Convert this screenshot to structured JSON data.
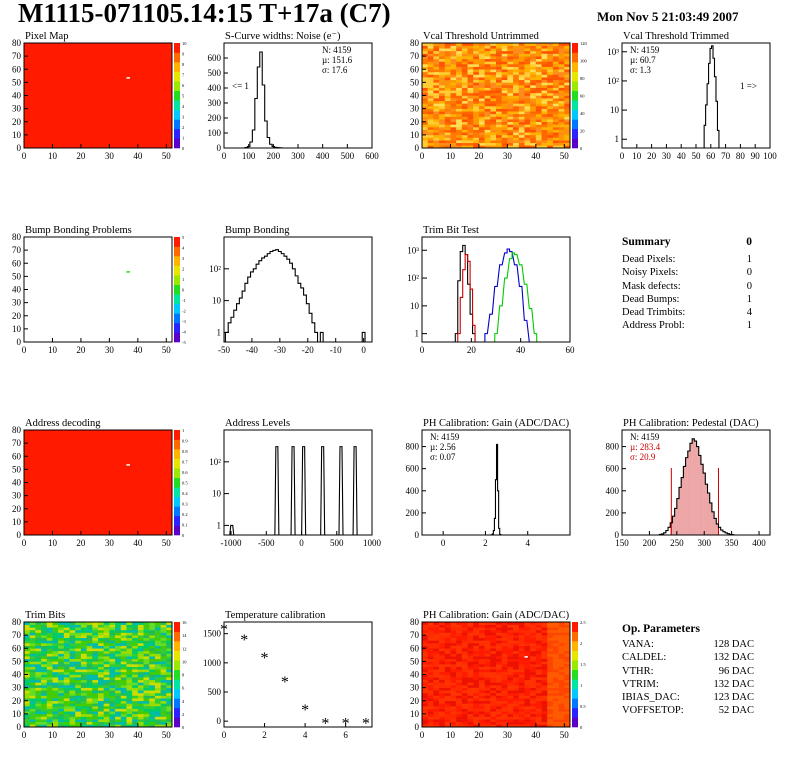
{
  "header": {
    "title": "M1115-071105.14:15 T+17a (C7)",
    "timestamp": "Mon Nov  5 21:03:49 2007"
  },
  "colors": {
    "histogram_line": "#000000",
    "trim_red": "#cc0000",
    "trim_blue": "#0000cc",
    "trim_green": "#00cc00",
    "pedestal_fill": "#cc0000",
    "map_red": "#ff1a00"
  },
  "chart_data": [
    {
      "id": "pixel-map",
      "type": "heatmap",
      "title": "Pixel Map",
      "xlim": [
        0,
        52
      ],
      "ylim": [
        0,
        80
      ],
      "x_ticks": [
        0,
        10,
        20,
        30,
        40,
        50
      ],
      "y_ticks": [
        0,
        10,
        20,
        30,
        40,
        50,
        60,
        70,
        80
      ],
      "z_ticks": [
        0,
        1,
        2,
        3,
        4,
        5,
        6,
        7,
        8,
        9,
        10
      ],
      "fill": "uniform",
      "special_pixels": [
        [
          36,
          53
        ]
      ]
    },
    {
      "id": "scurve-noise",
      "type": "histogram",
      "title": "S-Curve widths: Noise (e⁻)",
      "xlim": [
        0,
        600
      ],
      "ylim": [
        0,
        700
      ],
      "x_ticks": [
        0,
        100,
        200,
        300,
        400,
        500,
        600
      ],
      "y_ticks": [
        0,
        100,
        200,
        300,
        400,
        500,
        600
      ],
      "stats": [
        "N: 4159",
        "µ: 151.6",
        "σ: 17.6"
      ],
      "underflow_label": "<= 1",
      "bin_width": 10,
      "x": [
        90,
        100,
        110,
        120,
        130,
        140,
        150,
        160,
        170,
        180,
        190,
        200,
        210,
        220,
        230
      ],
      "values": [
        3,
        10,
        40,
        120,
        330,
        540,
        640,
        420,
        180,
        70,
        25,
        10,
        4,
        2,
        1
      ]
    },
    {
      "id": "vcal-untrimmed",
      "type": "heatmap",
      "title": "Vcal Threshold Untrimmed",
      "xlim": [
        0,
        52
      ],
      "ylim": [
        0,
        80
      ],
      "x_ticks": [
        0,
        10,
        20,
        30,
        40,
        50
      ],
      "y_ticks": [
        0,
        10,
        20,
        30,
        40,
        50,
        60,
        70,
        80
      ],
      "z_ticks": [
        0,
        20,
        40,
        60,
        80,
        100,
        120
      ],
      "fill": "noisy orange"
    },
    {
      "id": "vcal-trimmed",
      "type": "histogram",
      "title": "Vcal Threshold Trimmed",
      "log_y": true,
      "xlim": [
        0,
        100
      ],
      "ylim": [
        0.5,
        2000
      ],
      "x_ticks": [
        0,
        10,
        20,
        30,
        40,
        50,
        60,
        70,
        80,
        90,
        100
      ],
      "y_ticks": [
        "1",
        "10",
        "10²",
        "10³"
      ],
      "stats": [
        "N: 4159",
        "µ: 60.7",
        "σ: 1.3"
      ],
      "overflow_label": "1 =>",
      "bin_width": 1,
      "x": [
        56,
        57,
        58,
        59,
        60,
        61,
        62,
        63,
        64,
        65
      ],
      "values": [
        3,
        15,
        80,
        400,
        1300,
        1600,
        600,
        140,
        20,
        2
      ]
    },
    {
      "id": "bump-bonding-problems",
      "type": "heatmap",
      "title": "Bump Bonding Problems",
      "xlim": [
        0,
        52
      ],
      "ylim": [
        0,
        80
      ],
      "x_ticks": [
        0,
        10,
        20,
        30,
        40,
        50
      ],
      "y_ticks": [
        0,
        10,
        20,
        30,
        40,
        50,
        60,
        70,
        80
      ],
      "z_ticks": [
        -5,
        -4,
        -3,
        -2,
        -1,
        0,
        1,
        2,
        3,
        4,
        5
      ],
      "fill": "empty",
      "special_pixels": [
        [
          36,
          53
        ]
      ]
    },
    {
      "id": "bump-bonding",
      "type": "histogram",
      "title": "Bump Bonding",
      "log_y": true,
      "xlim": [
        -50,
        3
      ],
      "ylim": [
        0.5,
        1000
      ],
      "x_ticks": [
        -50,
        -40,
        -30,
        -20,
        -10,
        0
      ],
      "y_ticks": [
        "1",
        "10",
        "10²"
      ],
      "bin_width": 1,
      "x": [
        -49,
        -48,
        -47,
        -46,
        -45,
        -44,
        -43,
        -42,
        -41,
        -40,
        -39,
        -38,
        -37,
        -36,
        -35,
        -34,
        -33,
        -32,
        -31,
        -30,
        -29,
        -28,
        -27,
        -26,
        -25,
        -24,
        -23,
        -22,
        -21,
        -20,
        -19,
        -18,
        -17,
        -16,
        -15,
        -14,
        -13,
        -12,
        -11,
        -10,
        -9,
        -8,
        -7,
        -6,
        -5,
        -4,
        -3,
        -2,
        -1,
        0,
        1
      ],
      "values": [
        1,
        2,
        3,
        5,
        8,
        12,
        20,
        35,
        55,
        80,
        100,
        140,
        180,
        220,
        250,
        300,
        350,
        380,
        400,
        350,
        300,
        250,
        200,
        150,
        100,
        60,
        35,
        25,
        15,
        8,
        4,
        2,
        1,
        0,
        1,
        0,
        0,
        0,
        0,
        0,
        0,
        0,
        0,
        0,
        0,
        0,
        0,
        0,
        0,
        1,
        0
      ]
    },
    {
      "id": "trim-bit-test",
      "type": "histogram",
      "title": "Trim Bit Test",
      "log_y": true,
      "xlim": [
        0,
        60
      ],
      "ylim": [
        0.5,
        3000
      ],
      "x_ticks": [
        0,
        20,
        40,
        60
      ],
      "y_ticks": [
        "1",
        "10",
        "10²",
        "10³"
      ],
      "bin_width": 1,
      "series": [
        {
          "color": "#000000",
          "x": [
            14,
            15,
            16,
            17,
            18,
            19,
            20,
            21,
            22
          ],
          "values": [
            1,
            80,
            900,
            1500,
            700,
            60,
            5,
            1,
            0
          ]
        },
        {
          "color": "#cc0000",
          "x": [
            15,
            16,
            17,
            18,
            19,
            20,
            21,
            22
          ],
          "values": [
            1,
            20,
            200,
            700,
            400,
            40,
            2,
            0
          ]
        },
        {
          "color": "#0000cc",
          "x": [
            26,
            28,
            30,
            32,
            34,
            35,
            36,
            38,
            40,
            42,
            44
          ],
          "values": [
            1,
            5,
            50,
            300,
            800,
            1100,
            900,
            300,
            50,
            3,
            0
          ]
        },
        {
          "color": "#00cc00",
          "x": [
            30,
            32,
            34,
            36,
            37,
            38,
            40,
            42,
            44,
            46
          ],
          "values": [
            1,
            10,
            100,
            500,
            800,
            700,
            300,
            60,
            8,
            1
          ]
        }
      ]
    },
    {
      "id": "address-decoding",
      "type": "heatmap",
      "title": "Address decoding",
      "xlim": [
        0,
        52
      ],
      "ylim": [
        0,
        80
      ],
      "x_ticks": [
        0,
        10,
        20,
        30,
        40,
        50
      ],
      "y_ticks": [
        0,
        10,
        20,
        30,
        40,
        50,
        60,
        70,
        80
      ],
      "z_ticks": [
        0,
        0.1,
        0.2,
        0.3,
        0.4,
        0.5,
        0.6,
        0.7,
        0.8,
        0.9,
        1
      ],
      "fill": "uniform",
      "special_pixels": [
        [
          36,
          53
        ]
      ]
    },
    {
      "id": "address-levels",
      "type": "histogram",
      "title": "Address Levels",
      "log_y": true,
      "xlim": [
        -1100,
        1000
      ],
      "ylim": [
        0.5,
        1000
      ],
      "x_ticks": [
        -1000,
        -500,
        0,
        500,
        1000
      ],
      "y_ticks": [
        "1",
        "10",
        "10²"
      ],
      "peaks": [
        {
          "x": -990,
          "height": 1
        },
        {
          "x": -350,
          "height": 300
        },
        {
          "x": -120,
          "height": 300
        },
        {
          "x": 30,
          "height": 300
        },
        {
          "x": 300,
          "height": 300
        },
        {
          "x": 560,
          "height": 300
        },
        {
          "x": 760,
          "height": 300
        }
      ]
    },
    {
      "id": "ph-gain",
      "type": "histogram",
      "title": "PH Calibration: Gain (ADC/DAC)",
      "xlim": [
        -1,
        6
      ],
      "ylim": [
        0,
        950
      ],
      "x_ticks": [
        0,
        2,
        4
      ],
      "y_ticks": [
        0,
        200,
        400,
        600,
        800
      ],
      "stats": [
        "N: 4159",
        "µ: 2.56",
        "σ: 0.07"
      ],
      "bin_width": 0.05,
      "x": [
        2.3,
        2.35,
        2.4,
        2.45,
        2.5,
        2.55,
        2.6,
        2.65,
        2.7
      ],
      "values": [
        2,
        10,
        40,
        150,
        500,
        820,
        400,
        60,
        5
      ]
    },
    {
      "id": "ph-pedestal",
      "type": "histogram",
      "title": "PH Calibration: Pedestal (DAC)",
      "xlim": [
        150,
        420
      ],
      "ylim": [
        0,
        950
      ],
      "x_ticks": [
        150,
        200,
        250,
        300,
        350,
        400
      ],
      "y_ticks": [
        0,
        200,
        400,
        600,
        800
      ],
      "stats": [
        "N: 4159",
        "µ: 283.4",
        "σ: 20.9"
      ],
      "fit_lines": [
        240,
        326
      ],
      "bin_width": 4,
      "x": [
        220,
        224,
        228,
        232,
        236,
        240,
        244,
        248,
        252,
        256,
        260,
        264,
        268,
        272,
        276,
        280,
        284,
        288,
        292,
        296,
        300,
        304,
        308,
        312,
        316,
        320,
        324,
        328,
        332,
        336,
        340,
        344,
        348,
        352
      ],
      "values": [
        5,
        10,
        20,
        40,
        70,
        110,
        170,
        240,
        330,
        430,
        520,
        620,
        700,
        760,
        830,
        870,
        850,
        800,
        720,
        640,
        560,
        460,
        380,
        290,
        210,
        150,
        100,
        70,
        45,
        30,
        20,
        12,
        6,
        3
      ]
    },
    {
      "id": "trim-bits",
      "type": "heatmap",
      "title": "Trim Bits",
      "xlim": [
        0,
        52
      ],
      "ylim": [
        0,
        80
      ],
      "x_ticks": [
        0,
        10,
        20,
        30,
        40,
        50
      ],
      "y_ticks": [
        0,
        10,
        20,
        30,
        40,
        50,
        60,
        70,
        80
      ],
      "z_ticks": [
        0,
        2,
        4,
        6,
        8,
        10,
        12,
        14,
        16
      ],
      "fill": "noisy green"
    },
    {
      "id": "temperature-calibration",
      "type": "scatter",
      "title": "Temperature calibration",
      "xlim": [
        0,
        7.3
      ],
      "ylim": [
        -100,
        1700
      ],
      "x_ticks": [
        0,
        2,
        4,
        6
      ],
      "y_ticks": [
        0,
        500,
        1000,
        1500
      ],
      "x": [
        0,
        1,
        2,
        3,
        4,
        5,
        6,
        7
      ],
      "values": [
        1570,
        1390,
        1080,
        670,
        190,
        -40,
        -40,
        -40
      ]
    },
    {
      "id": "ph-gain-map",
      "type": "heatmap",
      "title": "PH Calibration: Gain (ADC/DAC)",
      "xlim": [
        0,
        52
      ],
      "ylim": [
        0,
        80
      ],
      "x_ticks": [
        0,
        10,
        20,
        30,
        40,
        50
      ],
      "y_ticks": [
        0,
        10,
        20,
        30,
        40,
        50,
        60,
        70,
        80
      ],
      "z_ticks": [
        0,
        0.5,
        1,
        1.5,
        2,
        2.5
      ],
      "fill": "red columns",
      "special_pixels": [
        [
          36,
          53
        ]
      ]
    }
  ],
  "summary": {
    "heading": "Summary",
    "total": "0",
    "rows": [
      {
        "label": "Dead Pixels:",
        "value": "1"
      },
      {
        "label": "Noisy Pixels:",
        "value": "0"
      },
      {
        "label": "Mask defects:",
        "value": "0"
      },
      {
        "label": "Dead Bumps:",
        "value": "1"
      },
      {
        "label": "Dead Trimbits:",
        "value": "4"
      },
      {
        "label": "Address Probl:",
        "value": "1"
      }
    ]
  },
  "op_parameters": {
    "heading": "Op. Parameters",
    "rows": [
      {
        "label": "VANA:",
        "value": "128 DAC"
      },
      {
        "label": "CALDEL:",
        "value": "132 DAC"
      },
      {
        "label": "VTHR:",
        "value": "96 DAC"
      },
      {
        "label": "VTRIM:",
        "value": "132 DAC"
      },
      {
        "label": "IBIAS_DAC:",
        "value": "123 DAC"
      },
      {
        "label": "VOFFSETOP:",
        "value": "52 DAC"
      }
    ]
  }
}
